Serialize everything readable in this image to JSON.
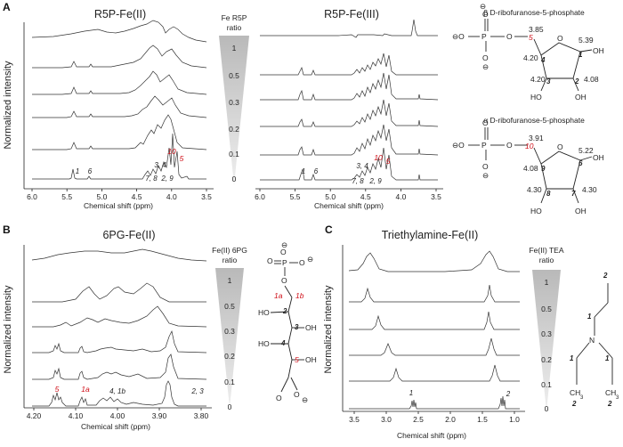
{
  "panels": {
    "A": {
      "label": "A",
      "left_title": "R5P-Fe(II)",
      "right_title": "R5P-Fe(III)",
      "ylabel": "Normalized intensity",
      "xlabel": "Chemical shift (ppm)",
      "ratio_header": [
        "Fe R5P",
        "ratio"
      ],
      "ratios": [
        "1",
        "0.5",
        "0.3",
        "0.2",
        "0.1",
        "0"
      ],
      "ticks": [
        "6.0",
        "5.5",
        "5.0",
        "4.5",
        "4.0",
        "3.5"
      ],
      "peak_labels": [
        "1",
        "6",
        "3, 4",
        "7, 8",
        "2, 9",
        "10",
        "5"
      ],
      "beta_title": "β D-ribofuranose-5-phosphate",
      "alpha_title": "α D-ribofuranose-5-phosphate",
      "beta_shifts": [
        "3.85",
        "5.39",
        "4.20",
        "4.20",
        "4.08"
      ],
      "alpha_shifts": [
        "3.91",
        "5.22",
        "4.08",
        "4.30",
        "4.30"
      ]
    },
    "B": {
      "label": "B",
      "title": "6PG-Fe(II)",
      "ylabel": "Normalized intensity",
      "xlabel": "Chemical shift (ppm)",
      "ratio_header": [
        "Fe(II) 6PG",
        "ratio"
      ],
      "ratios": [
        "1",
        "0.5",
        "0.3",
        "0.2",
        "0.1",
        "0"
      ],
      "ticks": [
        "4.20",
        "4.10",
        "4.00",
        "3.90",
        "3.80"
      ],
      "peak_labels": [
        "5",
        "1a",
        "4, 1b",
        "2, 3"
      ],
      "struct_labels": [
        "1a",
        "1b",
        "2",
        "3",
        "4",
        "5",
        "HO",
        "OH"
      ]
    },
    "C": {
      "label": "C",
      "title": "Triethylamine-Fe(II)",
      "ylabel": "Normalized intensity",
      "xlabel": "Chemical shift (ppm)",
      "ratio_header": [
        "Fe(II) TEA",
        "ratio"
      ],
      "ratios": [
        "1",
        "0.5",
        "0.3",
        "0.2",
        "0.1",
        "0"
      ],
      "ticks": [
        "3.5",
        "3.0",
        "2.5",
        "2.0",
        "1.5",
        "1.0"
      ],
      "peak_labels": [
        "1",
        "2"
      ],
      "struct_labels": [
        "N",
        "1",
        "2"
      ]
    }
  }
}
